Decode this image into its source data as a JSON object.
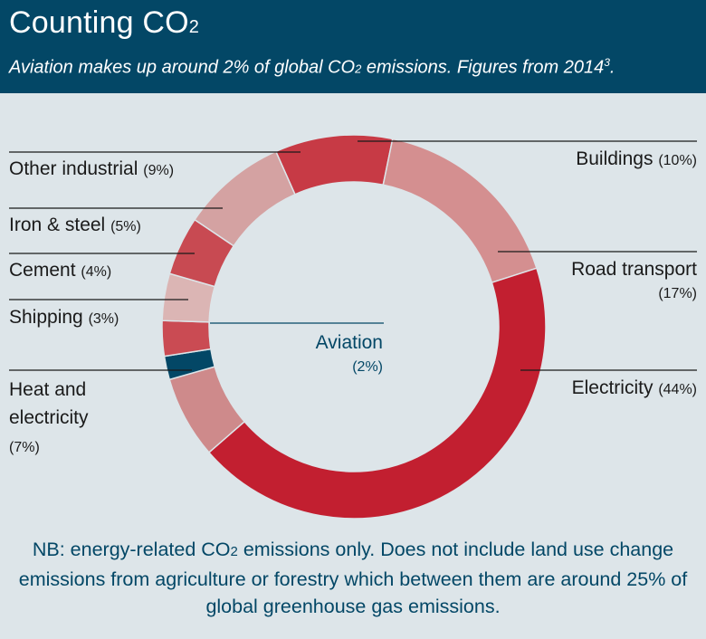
{
  "header": {
    "title": "Counting CO",
    "title_sub": "2",
    "subtitle_a": "Aviation makes up around 2% of global CO",
    "subtitle_sub": "2",
    "subtitle_b": " emissions. Figures from 2014",
    "subtitle_sup": "3",
    "subtitle_end": "."
  },
  "chart_data": {
    "type": "pie",
    "variant": "donut",
    "title": "Counting CO2",
    "subtitle": "Aviation makes up around 2% of global CO2 emissions. Figures from 2014",
    "unit": "%",
    "slices": [
      {
        "name": "Buildings",
        "value": 10,
        "pct_label": "(10%)",
        "color": "#c73a45"
      },
      {
        "name": "Road transport",
        "value": 17,
        "pct_label": "(17%)",
        "color": "#d48f90"
      },
      {
        "name": "Electricity",
        "value": 44,
        "pct_label": "(44%)",
        "color": "#c21f30"
      },
      {
        "name": "Heat and electricity",
        "value": 7,
        "pct_label": "(7%)",
        "color": "#ce8a8b"
      },
      {
        "name": "Aviation",
        "value": 2,
        "pct_label": "(2%)",
        "color": "#034766"
      },
      {
        "name": "Shipping",
        "value": 3,
        "pct_label": "(3%)",
        "color": "#ca4b53"
      },
      {
        "name": "Cement",
        "value": 4,
        "pct_label": "(4%)",
        "color": "#dbb5b4"
      },
      {
        "name": "Iron & steel",
        "value": 5,
        "pct_label": "(5%)",
        "color": "#c84a52"
      },
      {
        "name": "Other industrial",
        "value": 9,
        "pct_label": "(9%)",
        "color": "#d4a2a2"
      }
    ]
  },
  "labels": {
    "buildings": "Buildings",
    "road_transport": "Road transport",
    "electricity": "Electricity",
    "heat_line1": "Heat and",
    "heat_line2": "electricity",
    "aviation": "Aviation",
    "shipping": "Shipping",
    "cement": "Cement",
    "iron_steel": "Iron & steel",
    "other_industrial": "Other industrial"
  },
  "note": {
    "a": "NB: energy-related CO",
    "sub": "2",
    "b": " emissions only. Does not include land use change emissions from agriculture or forestry which between them are around 25% of global greenhouse gas emissions."
  }
}
